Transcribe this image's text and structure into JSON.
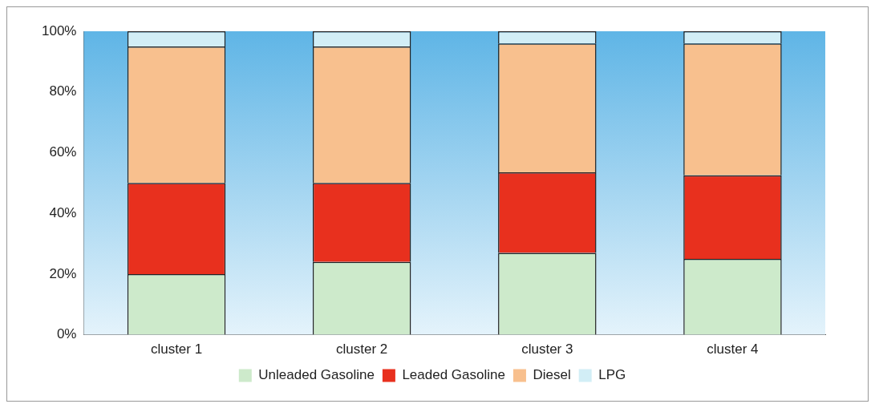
{
  "chart_data": {
    "type": "bar",
    "stacked": true,
    "categories": [
      "cluster 1",
      "cluster 2",
      "cluster 3",
      "cluster 4"
    ],
    "series": [
      {
        "name": "Unleaded Gasoline",
        "color": "#cdeacb",
        "values": [
          20,
          24,
          27,
          25
        ]
      },
      {
        "name": "Leaded Gasoline",
        "color": "#e8301e",
        "values": [
          30,
          26,
          26.5,
          27.5
        ]
      },
      {
        "name": "Diesel",
        "color": "#f8c08e",
        "values": [
          45,
          45,
          42.5,
          43.5
        ]
      },
      {
        "name": "LPG",
        "color": "#d2eef6",
        "values": [
          5,
          5,
          4,
          4
        ]
      }
    ],
    "ylim": [
      0,
      100
    ],
    "yticks": [
      {
        "value": 0,
        "label": "0%"
      },
      {
        "value": 20,
        "label": "20%"
      },
      {
        "value": 40,
        "label": "40%"
      },
      {
        "value": 60,
        "label": "60%"
      },
      {
        "value": 80,
        "label": "80%"
      },
      {
        "value": 100,
        "label": "100%"
      }
    ],
    "grid": false,
    "legend": "bottom"
  }
}
